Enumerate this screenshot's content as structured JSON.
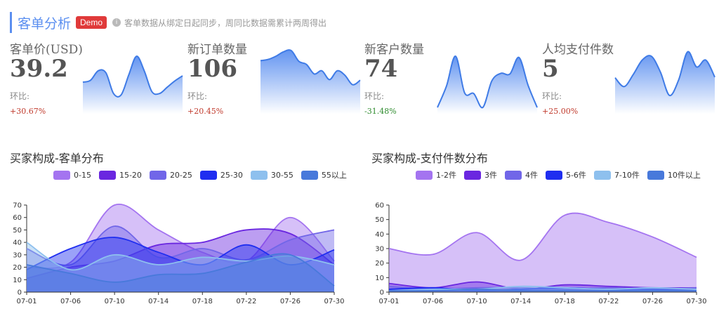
{
  "header": {
    "title": "客单分析",
    "badge": "Demo",
    "info_icon": "info-icon",
    "note": "客单数据从绑定日起同步，周同比数据需累计两周得出"
  },
  "kpis": [
    {
      "label": "客单价(USD)",
      "value": "39.2",
      "sub": "环比:",
      "pct": "+30.67%",
      "pct_color": "#c0392b"
    },
    {
      "label": "新订单数量",
      "value": "106",
      "sub": "环比:",
      "pct": "+20.45%",
      "pct_color": "#c0392b"
    },
    {
      "label": "新客户数量",
      "value": "74",
      "sub": "环比:",
      "pct": "-31.48%",
      "pct_color": "#2e8b2e"
    },
    {
      "label": "人均支付件数",
      "value": "5",
      "sub": "环比:",
      "pct": "+25.00%",
      "pct_color": "#c0392b"
    }
  ],
  "colors": {
    "accent": "#5b8ff0",
    "spark_line": "#3f7be6",
    "spark_fill_top": "#5b8ff0",
    "spark_fill_bottom": "#ffffff"
  },
  "sparklines": [
    [
      5,
      5.3,
      6.8,
      6.5,
      3.2,
      3,
      6.2,
      9.1,
      6.8,
      3.5,
      3.2,
      4.2,
      5.2,
      6
    ],
    [
      8.4,
      8.6,
      9.1,
      9.8,
      10,
      8.3,
      7.8,
      6.3,
      6.8,
      5.4,
      6.8,
      6.1,
      4.6,
      5.3
    ],
    [
      1,
      4.4,
      9.1,
      3.3,
      3.2,
      1,
      5.2,
      6.4,
      6.3,
      8.9,
      4.5,
      1
    ],
    [
      5.7,
      4.3,
      6.2,
      8.5,
      9.1,
      6.6,
      2.9,
      5.3,
      9.8,
      7.4,
      8.5,
      5.8
    ]
  ],
  "chart_data": [
    {
      "type": "area",
      "title": "买家构成-客单分布",
      "x": [
        "07-01",
        "07-06",
        "07-10",
        "07-14",
        "07-18",
        "07-22",
        "07-26",
        "07-30"
      ],
      "ylim": [
        0,
        70
      ],
      "yticks": [
        0,
        10,
        20,
        30,
        40,
        50,
        60,
        70
      ],
      "legend": "top",
      "series": [
        {
          "name": "0-15",
          "color": "#a474f0",
          "values": [
            20,
            24,
            70,
            50,
            32,
            25,
            60,
            25
          ]
        },
        {
          "name": "15-20",
          "color": "#6a27e0",
          "values": [
            11,
            20,
            25,
            38,
            40,
            50,
            47,
            22
          ]
        },
        {
          "name": "20-25",
          "color": "#7166e8",
          "values": [
            35,
            22,
            53,
            28,
            35,
            26,
            42,
            50
          ]
        },
        {
          "name": "25-30",
          "color": "#1f2ef0",
          "values": [
            18,
            35,
            44,
            32,
            22,
            38,
            22,
            34
          ]
        },
        {
          "name": "30-55",
          "color": "#8ec0ee",
          "values": [
            40,
            18,
            30,
            22,
            28,
            25,
            29,
            22
          ]
        },
        {
          "name": "55以上",
          "color": "#4879db",
          "values": [
            22,
            15,
            8,
            14,
            15,
            24,
            30,
            5
          ]
        }
      ]
    },
    {
      "type": "area",
      "title": "买家构成-支付件数分布",
      "x": [
        "07-01",
        "07-06",
        "07-10",
        "07-14",
        "07-18",
        "07-22",
        "07-26",
        "07-30"
      ],
      "ylim": [
        0,
        60
      ],
      "yticks": [
        0,
        10,
        20,
        30,
        40,
        50,
        60
      ],
      "legend": "top",
      "series": [
        {
          "name": "1-2件",
          "color": "#a474f0",
          "values": [
            30,
            26,
            41,
            22,
            53,
            48,
            38,
            24
          ]
        },
        {
          "name": "3件",
          "color": "#6a27e0",
          "values": [
            6,
            3,
            7,
            2,
            5,
            4,
            3,
            3
          ]
        },
        {
          "name": "4件",
          "color": "#7166e8",
          "values": [
            4,
            2,
            3,
            3,
            2,
            3,
            2,
            3
          ]
        },
        {
          "name": "5-6件",
          "color": "#1f2ef0",
          "values": [
            2,
            3,
            1,
            2,
            3,
            2,
            2,
            1
          ]
        },
        {
          "name": "7-10件",
          "color": "#8ec0ee",
          "values": [
            1,
            2,
            2,
            4,
            3,
            2,
            3,
            2
          ]
        },
        {
          "name": "10件以上",
          "color": "#4879db",
          "values": [
            1,
            1,
            2,
            1,
            1,
            1,
            1,
            1
          ]
        }
      ]
    }
  ]
}
